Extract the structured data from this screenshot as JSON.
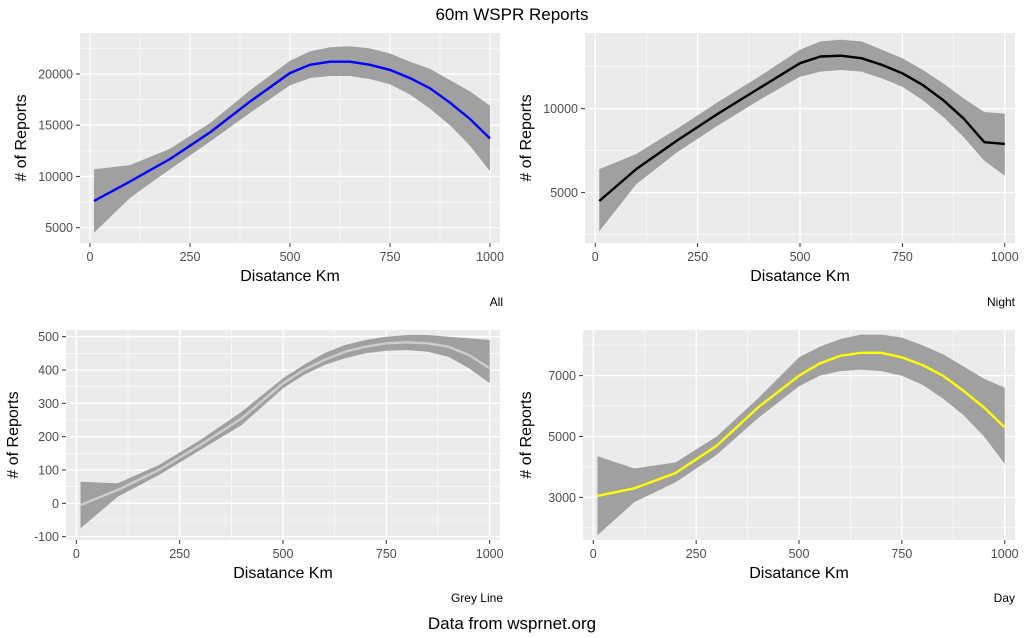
{
  "title": "60m WSPR Reports",
  "caption": "Data from wsprnet.org",
  "chart_data": [
    {
      "type": "line",
      "panel_label": "All",
      "xlabel": "Disatance Km",
      "ylabel": "# of Reports",
      "xlim": [
        -25,
        1025
      ],
      "ylim": [
        3500,
        24000
      ],
      "xticks": [
        0,
        250,
        500,
        750,
        1000
      ],
      "yticks": [
        5000,
        10000,
        15000,
        20000
      ],
      "grid": true,
      "series": [
        {
          "color": "#0000ff",
          "x": [
            10,
            100,
            200,
            300,
            400,
            500,
            550,
            600,
            650,
            700,
            750,
            800,
            850,
            900,
            950,
            1000
          ],
          "y": [
            7600,
            9500,
            11700,
            14300,
            17300,
            20100,
            20900,
            21200,
            21200,
            20900,
            20400,
            19600,
            18600,
            17200,
            15600,
            13700
          ],
          "lower": [
            4500,
            7900,
            10700,
            13400,
            16200,
            18900,
            19600,
            19800,
            19800,
            19500,
            19000,
            18000,
            16600,
            15000,
            13000,
            10500
          ],
          "upper": [
            10700,
            11100,
            12700,
            15200,
            18400,
            21300,
            22200,
            22600,
            22700,
            22500,
            22000,
            21200,
            20500,
            19400,
            18300,
            16900
          ]
        }
      ]
    },
    {
      "type": "line",
      "panel_label": "Night",
      "xlabel": "Disatance Km",
      "ylabel": "# of Reports",
      "xlim": [
        -25,
        1025
      ],
      "ylim": [
        2000,
        14500
      ],
      "xticks": [
        0,
        250,
        500,
        750,
        1000
      ],
      "yticks": [
        5000,
        10000
      ],
      "grid": true,
      "series": [
        {
          "color": "#000000",
          "x": [
            10,
            100,
            200,
            300,
            400,
            500,
            550,
            600,
            650,
            700,
            750,
            800,
            850,
            900,
            950,
            1000
          ],
          "y": [
            4500,
            6400,
            8100,
            9700,
            11200,
            12700,
            13100,
            13150,
            13000,
            12600,
            12100,
            11400,
            10500,
            9400,
            8000,
            7900
          ],
          "lower": [
            2700,
            5500,
            7400,
            9000,
            10500,
            11900,
            12200,
            12300,
            12200,
            11800,
            11300,
            10500,
            9500,
            8300,
            6900,
            6000
          ],
          "upper": [
            6400,
            7300,
            8800,
            10400,
            11900,
            13500,
            14000,
            14100,
            14000,
            13500,
            13000,
            12300,
            11500,
            10600,
            9800,
            9700
          ]
        }
      ]
    },
    {
      "type": "line",
      "panel_label": "Grey Line",
      "xlabel": "Disatance Km",
      "ylabel": "# of Reports",
      "xlim": [
        -25,
        1025
      ],
      "ylim": [
        -110,
        520
      ],
      "xticks": [
        0,
        250,
        500,
        750,
        1000
      ],
      "yticks": [
        -100,
        0,
        100,
        200,
        300,
        400,
        500
      ],
      "grid": true,
      "series": [
        {
          "color": "#cccccc",
          "x": [
            10,
            100,
            200,
            300,
            400,
            500,
            550,
            600,
            650,
            700,
            750,
            800,
            850,
            900,
            950,
            1000
          ],
          "y": [
            -5,
            40,
            100,
            175,
            255,
            360,
            400,
            430,
            455,
            470,
            480,
            483,
            480,
            470,
            445,
            405
          ],
          "lower": [
            -75,
            20,
            85,
            160,
            235,
            345,
            385,
            415,
            435,
            450,
            458,
            460,
            455,
            440,
            405,
            360
          ],
          "upper": [
            65,
            60,
            115,
            190,
            275,
            375,
            415,
            450,
            475,
            490,
            500,
            505,
            505,
            500,
            495,
            490
          ]
        }
      ]
    },
    {
      "type": "line",
      "panel_label": "Day",
      "xlabel": "Disatance Km",
      "ylabel": "# of Reports",
      "xlim": [
        -25,
        1025
      ],
      "ylim": [
        1600,
        8500
      ],
      "xticks": [
        0,
        250,
        500,
        750,
        1000
      ],
      "yticks": [
        3000,
        5000,
        7000
      ],
      "grid": true,
      "series": [
        {
          "color": "#ffff00",
          "x": [
            10,
            100,
            200,
            300,
            400,
            500,
            550,
            600,
            650,
            700,
            750,
            800,
            850,
            900,
            950,
            1000
          ],
          "y": [
            3050,
            3300,
            3800,
            4700,
            5950,
            7000,
            7400,
            7650,
            7750,
            7750,
            7600,
            7350,
            7000,
            6500,
            5950,
            5300
          ],
          "lower": [
            1750,
            2850,
            3500,
            4400,
            5600,
            6650,
            7000,
            7150,
            7200,
            7150,
            7000,
            6700,
            6250,
            5700,
            5000,
            4100
          ],
          "upper": [
            4350,
            3950,
            4150,
            5000,
            6250,
            7600,
            7950,
            8200,
            8350,
            8350,
            8250,
            8000,
            7700,
            7300,
            6900,
            6600
          ]
        }
      ]
    }
  ]
}
